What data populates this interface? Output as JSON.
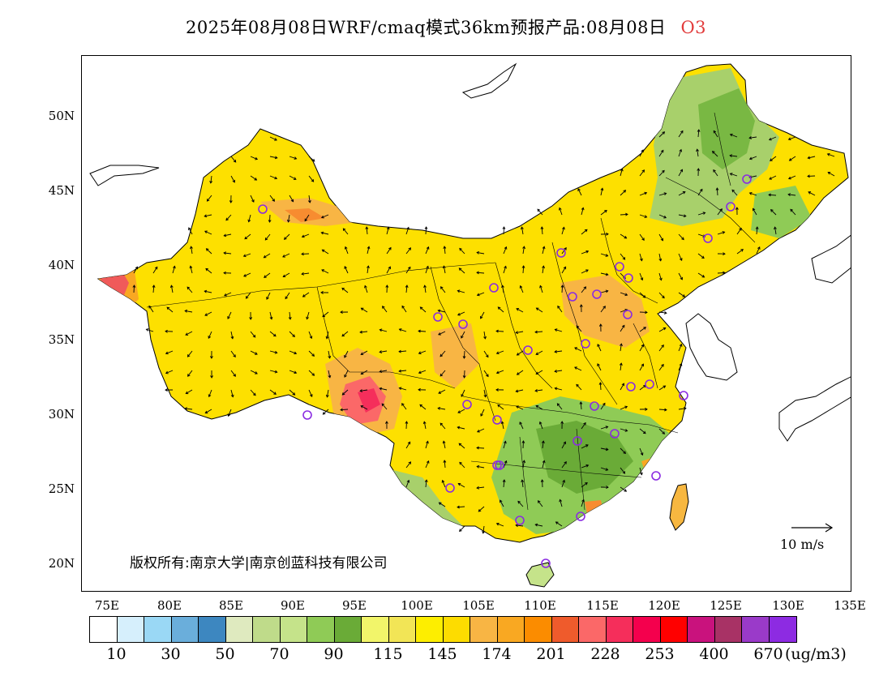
{
  "title": {
    "text": "2025年08月08日WRF/cmaq模式36km预报产品:08月08日",
    "species": "O3"
  },
  "axes": {
    "lat_labels": [
      "50N",
      "45N",
      "40N",
      "35N",
      "30N",
      "25N",
      "20N"
    ],
    "lon_labels": [
      "75E",
      "80E",
      "85E",
      "90E",
      "95E",
      "100E",
      "105E",
      "110E",
      "115E",
      "120E",
      "125E",
      "130E",
      "135E"
    ]
  },
  "copyright": "版权所有:南京大学|南京创蓝科技有限公司",
  "wind_scale": {
    "label": "10 m/s"
  },
  "colorbar": {
    "colors": [
      "#ffffff",
      "#d6effc",
      "#9ad8f5",
      "#6aaedb",
      "#3d87c0",
      "#dfeabf",
      "#bfdb8a",
      "#c5e38a",
      "#8fcb56",
      "#6aab37",
      "#f2f56a",
      "#f2e556",
      "#fdee00",
      "#fddc00",
      "#f8b544",
      "#f9a822",
      "#fb8c00",
      "#ef5b2c",
      "#fb6868",
      "#f52e5b",
      "#f4004d",
      "#ff0000",
      "#c9127d",
      "#a83265",
      "#9a3ac9",
      "#8d2be2"
    ],
    "labels": [
      "10",
      "30",
      "50",
      "70",
      "90",
      "115",
      "145",
      "174",
      "201",
      "228",
      "253",
      "400",
      "670"
    ],
    "unit": "(ug/m3)"
  },
  "stations_count": 31
}
